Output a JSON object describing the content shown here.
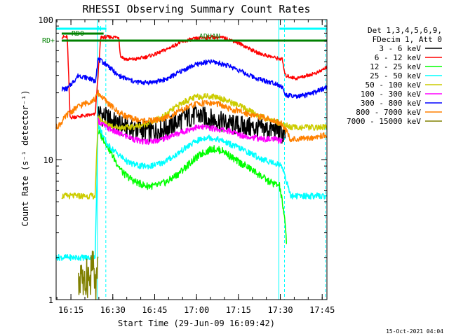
{
  "chart_data": {
    "type": "line",
    "title": "RHESSI Observing Summary Count Rates",
    "xlabel": "Start Time (29-Jun-09 16:09:42)",
    "ylabel": "Count Rate (s⁻¹ detector⁻¹)",
    "y_scale": "log",
    "ylim": [
      1,
      100
    ],
    "y_ticks": [
      {
        "value": 1,
        "label": "1"
      },
      {
        "value": 10,
        "label": "10"
      },
      {
        "value": 100,
        "label": "100"
      }
    ],
    "x_range_minutes": [
      0,
      97
    ],
    "x_ticks": [
      {
        "minute": 5.3,
        "label": "16:15"
      },
      {
        "minute": 20.3,
        "label": "16:30"
      },
      {
        "minute": 35.3,
        "label": "16:45"
      },
      {
        "minute": 50.3,
        "label": "17:00"
      },
      {
        "minute": 65.3,
        "label": "17:15"
      },
      {
        "minute": 80.3,
        "label": "17:30"
      },
      {
        "minute": 95.3,
        "label": "17:45"
      }
    ],
    "legend_header": [
      "Det 1,3,4,5,6,9,",
      "FDecim 1, Att 0"
    ],
    "legend_placement": "right, outside plot",
    "series": [
      {
        "name": "3 - 6 keV",
        "color": "#000000",
        "x": [
          15,
          18,
          22,
          26,
          30,
          34,
          38,
          42,
          46,
          50,
          54,
          58,
          62,
          66,
          70,
          74,
          78,
          80,
          82
        ],
        "y": [
          22,
          20,
          18,
          17,
          16.5,
          16,
          16.5,
          18,
          20,
          21,
          20,
          19,
          18,
          17.5,
          17,
          16.5,
          16.5,
          16,
          15
        ]
      },
      {
        "name": "6 - 12 keV",
        "color": "#ff0000",
        "x": [
          2,
          4,
          5,
          14,
          16,
          20,
          22.5,
          23,
          25,
          28,
          32,
          36,
          40,
          44,
          48,
          52,
          56,
          60,
          64,
          68,
          72,
          76,
          79,
          81,
          82,
          86,
          90,
          94,
          97
        ],
        "y": [
          75,
          75,
          20,
          21,
          75,
          75,
          75,
          55,
          52,
          52,
          54,
          57,
          62,
          68,
          72,
          74,
          75,
          74,
          70,
          64,
          58,
          55,
          53,
          52,
          40,
          38,
          40,
          42,
          46
        ]
      },
      {
        "name": "12 - 25 keV",
        "color": "#00ff00",
        "x": [
          15,
          18,
          21,
          24,
          28,
          32,
          36,
          40,
          44,
          48,
          52,
          56,
          60,
          64,
          68,
          72,
          76,
          80,
          81,
          82,
          82.5
        ],
        "y": [
          16,
          13,
          10,
          8,
          7,
          6.5,
          6.5,
          7,
          8,
          9.5,
          11,
          12,
          11.5,
          10,
          9,
          8,
          7,
          6.5,
          5,
          3.5,
          2.6
        ]
      },
      {
        "name": "25 - 50 keV",
        "color": "#00ffff",
        "x": [
          0,
          4,
          5,
          10,
          14,
          15,
          18,
          22,
          26,
          30,
          34,
          38,
          42,
          46,
          50,
          54,
          58,
          62,
          66,
          70,
          74,
          78,
          81,
          84,
          88,
          92,
          97
        ],
        "y": [
          2,
          2,
          2,
          2,
          2,
          18,
          13,
          11,
          9.5,
          9,
          9,
          9.5,
          10.5,
          12,
          13.5,
          14.5,
          14,
          13,
          12,
          11,
          10,
          9.5,
          9,
          5.5,
          5.5,
          5.5,
          5.5
        ]
      },
      {
        "name": "50 - 100 keV",
        "color": "#cccc00",
        "x": [
          2,
          4,
          6,
          10,
          14,
          15,
          18,
          22,
          26,
          30,
          34,
          38,
          42,
          46,
          50,
          54,
          58,
          62,
          66,
          70,
          74,
          78,
          81,
          84,
          88,
          92,
          97
        ],
        "y": [
          5.5,
          5.5,
          5.5,
          5.5,
          5.5,
          20,
          18,
          17,
          17,
          17.5,
          18.5,
          20,
          23,
          26,
          28,
          28.5,
          28,
          26,
          24,
          22,
          20,
          19,
          18,
          17,
          17,
          17,
          17
        ]
      },
      {
        "name": "100 - 300 keV",
        "color": "#ff00ff",
        "x": [
          15,
          18,
          22,
          26,
          30,
          34,
          38,
          42,
          46,
          50,
          54,
          58,
          62,
          66,
          70,
          74,
          78,
          81
        ],
        "y": [
          19,
          17,
          15.5,
          14.5,
          13.5,
          13.5,
          14,
          15,
          16,
          17,
          17,
          16.5,
          16,
          15,
          14.5,
          14,
          14,
          13.5
        ]
      },
      {
        "name": "300 - 800 keV",
        "color": "#0000ff",
        "x": [
          2,
          4,
          8,
          12,
          14,
          15,
          18,
          20,
          22,
          25,
          28,
          32,
          36,
          40,
          44,
          48,
          52,
          56,
          60,
          64,
          68,
          72,
          76,
          79,
          81,
          82,
          86,
          90,
          94,
          97
        ],
        "y": [
          32,
          32,
          40,
          38,
          36,
          52,
          48,
          44,
          40,
          38,
          36,
          35.5,
          36,
          38,
          42,
          46,
          49,
          50,
          48,
          45,
          41,
          38,
          36,
          35,
          33,
          29,
          28,
          29,
          31,
          33
        ]
      },
      {
        "name": "800 - 7000 keV",
        "color": "#ff8000",
        "x": [
          0,
          1.5,
          4,
          8,
          12,
          14,
          15,
          18,
          22,
          26,
          30,
          34,
          38,
          42,
          46,
          50,
          54,
          58,
          62,
          66,
          70,
          74,
          78,
          81,
          84,
          88,
          92,
          97
        ],
        "y": [
          17,
          18,
          21,
          24,
          26,
          27,
          30,
          26,
          22,
          20,
          19,
          19,
          19.5,
          21,
          23,
          25,
          25.5,
          25,
          23,
          22,
          21,
          20,
          19,
          18,
          14,
          14,
          14.5,
          15
        ]
      },
      {
        "name": "7000 - 15000 keV",
        "color": "#808000",
        "x": [
          8,
          9,
          10,
          11,
          12,
          13,
          14,
          15
        ],
        "y": [
          1.2,
          1.8,
          1.1,
          1.7,
          1.3,
          1.9,
          1.2,
          1.6
        ]
      }
    ],
    "annotations": [
      {
        "text": "RD0",
        "color": "#008000"
      },
      {
        "text": "RD+",
        "color": "#008000"
      },
      {
        "text": "N",
        "color": "#00ffff"
      },
      {
        "text": "ADHAN",
        "color": "#008000"
      }
    ],
    "flag_bars": [
      {
        "label": "RD0",
        "color": "#008000",
        "start": 2,
        "end": 17
      },
      {
        "label": "RD+",
        "color": "#008000",
        "start": 2,
        "end": 97
      },
      {
        "label": "N",
        "color": "#00ffff",
        "start": 0,
        "end": 18
      },
      {
        "label": "N",
        "color": "#00ffff",
        "start": 80,
        "end": 97
      }
    ],
    "vertical_markers": [
      {
        "minute": 0,
        "color": "#00ffff",
        "style": "solid"
      },
      {
        "minute": 14.8,
        "color": "#00ffff",
        "style": "solid"
      },
      {
        "minute": 17.8,
        "color": "#00ffff",
        "style": "dashed"
      },
      {
        "minute": 79.8,
        "color": "#00ffff",
        "style": "solid"
      },
      {
        "minute": 81.8,
        "color": "#00ffff",
        "style": "dashed"
      },
      {
        "minute": 96.5,
        "color": "#00ffff",
        "style": "dashed"
      }
    ],
    "grid": false
  },
  "footer": {
    "timestamp": "15-Oct-2021 04:04"
  }
}
